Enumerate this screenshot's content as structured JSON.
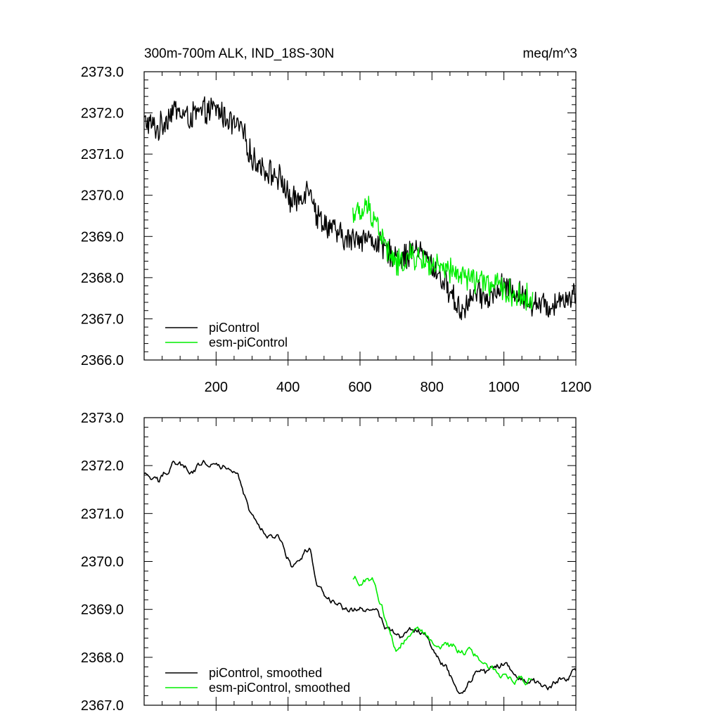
{
  "header": {
    "title": "300m-700m ALK, IND_18S-30N",
    "units": "meq/m^3"
  },
  "colors": {
    "piControl": "#000000",
    "esm_piControl": "#00ee00"
  },
  "chart_data": [
    {
      "type": "line",
      "title": "300m-700m ALK, IND_18S-30N",
      "units": "meq/m^3",
      "xlim": [
        0,
        1200
      ],
      "ylim": [
        2366.0,
        2373.0
      ],
      "xticks": [
        200,
        400,
        600,
        800,
        1000,
        1200
      ],
      "xtick_labels": [
        "200",
        "400",
        "600",
        "800",
        "1000",
        "1200"
      ],
      "yticks": [
        2366.0,
        2367.0,
        2368.0,
        2369.0,
        2370.0,
        2371.0,
        2372.0,
        2373.0
      ],
      "ytick_labels": [
        "2366.0",
        "2367.0",
        "2368.0",
        "2369.0",
        "2370.0",
        "2371.0",
        "2372.0",
        "2373.0"
      ],
      "legend_position": "bottom-left",
      "series": [
        {
          "name": "piControl",
          "color": "#000000",
          "smooth": false,
          "x": [
            0,
            40,
            80,
            120,
            160,
            200,
            240,
            270,
            300,
            340,
            380,
            410,
            440,
            460,
            480,
            520,
            560,
            600,
            640,
            680,
            720,
            760,
            800,
            840,
            880,
            920,
            960,
            1000,
            1040,
            1080,
            1120,
            1160,
            1200
          ],
          "y": [
            2371.8,
            2371.6,
            2372.1,
            2371.9,
            2372.0,
            2372.1,
            2371.8,
            2371.6,
            2370.9,
            2370.6,
            2370.4,
            2369.8,
            2370.0,
            2370.3,
            2369.5,
            2369.2,
            2368.9,
            2369.0,
            2368.9,
            2368.6,
            2368.5,
            2368.7,
            2368.3,
            2367.8,
            2367.2,
            2367.6,
            2367.5,
            2367.8,
            2367.6,
            2367.4,
            2367.3,
            2367.5,
            2367.6
          ]
        },
        {
          "name": "esm-piControl",
          "color": "#00ee00",
          "smooth": false,
          "x": [
            580,
            600,
            620,
            640,
            660,
            680,
            700,
            740,
            780,
            820,
            860,
            900,
            940,
            980,
            1020,
            1060,
            1080
          ],
          "y": [
            2369.6,
            2369.5,
            2369.7,
            2369.5,
            2369.0,
            2368.6,
            2368.3,
            2368.5,
            2368.4,
            2368.2,
            2368.1,
            2368.0,
            2367.9,
            2367.8,
            2367.6,
            2367.5,
            2367.5
          ]
        }
      ]
    },
    {
      "type": "line",
      "xlim": [
        0,
        1200
      ],
      "ylim": [
        2367.0,
        2373.0
      ],
      "xticks": [
        200,
        400,
        600,
        800,
        1000,
        1200
      ],
      "yticks": [
        2367.0,
        2368.0,
        2369.0,
        2370.0,
        2371.0,
        2372.0,
        2373.0
      ],
      "ytick_labels": [
        "2367.0",
        "2368.0",
        "2369.0",
        "2370.0",
        "2371.0",
        "2372.0",
        "2373.0"
      ],
      "legend_position": "bottom-left",
      "series": [
        {
          "name": "piControl, smoothed",
          "color": "#000000",
          "smooth": true,
          "x": [
            0,
            40,
            80,
            120,
            160,
            200,
            240,
            270,
            300,
            340,
            380,
            410,
            440,
            460,
            480,
            520,
            560,
            600,
            640,
            680,
            720,
            760,
            800,
            840,
            880,
            920,
            960,
            1000,
            1040,
            1080,
            1120,
            1160,
            1200
          ],
          "y": [
            2371.8,
            2371.6,
            2372.1,
            2371.9,
            2372.0,
            2372.2,
            2371.9,
            2371.6,
            2370.9,
            2370.6,
            2370.4,
            2369.9,
            2370.2,
            2370.3,
            2369.5,
            2369.2,
            2368.9,
            2369.0,
            2369.0,
            2368.6,
            2368.4,
            2368.6,
            2368.2,
            2367.8,
            2367.2,
            2367.7,
            2367.6,
            2367.9,
            2367.6,
            2367.5,
            2367.3,
            2367.6,
            2367.7
          ]
        },
        {
          "name": "esm-piControl, smoothed",
          "color": "#00ee00",
          "smooth": true,
          "x": [
            580,
            600,
            620,
            640,
            660,
            680,
            700,
            740,
            780,
            820,
            860,
            900,
            940,
            980,
            1020,
            1060,
            1080
          ],
          "y": [
            2369.6,
            2369.6,
            2369.7,
            2369.6,
            2369.1,
            2368.6,
            2368.2,
            2368.5,
            2368.5,
            2368.2,
            2368.2,
            2368.1,
            2367.9,
            2367.7,
            2367.6,
            2367.5,
            2367.6
          ]
        }
      ]
    }
  ]
}
